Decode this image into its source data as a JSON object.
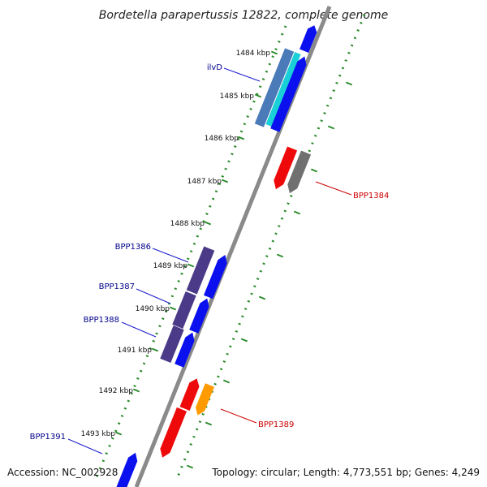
{
  "title": "Bordetella parapertussis 12822, complete genome",
  "footer": {
    "accession": "Accession: NC_002928",
    "topology": "Topology: circular; Length: 4,773,551 bp; Genes: 4,249"
  },
  "colors": {
    "background": "#ffffff",
    "backbone": "#8a8a8a",
    "dotted_track": "#2a8a2a",
    "blue_gene": "#0a10ee",
    "red_gene": "#ee0a0a",
    "cyan_gene": "#1ad0d8",
    "steelblue_gene": "#4a7ab8",
    "purple_gene": "#4a3a88",
    "gray_gene": "#707070",
    "orange_gene": "#ff9a00",
    "label_blue": "#00008b",
    "label_red": "#cc0000"
  },
  "scale_labels": [
    "1484 kbp",
    "1485 kbp",
    "1486 kbp",
    "1487 kbp",
    "1488 kbp",
    "1489 kbp",
    "1490 kbp",
    "1491 kbp",
    "1492 kbp",
    "1493 kbp"
  ],
  "gene_labels": [
    {
      "text": "ilvD",
      "color": "label_blue"
    },
    {
      "text": "BPP1384",
      "color": "label_red"
    },
    {
      "text": "BPP1386",
      "color": "label_blue"
    },
    {
      "text": "BPP1387",
      "color": "label_blue"
    },
    {
      "text": "BPP1388",
      "color": "label_blue"
    },
    {
      "text": "BPP1389",
      "color": "label_red"
    },
    {
      "text": "BPP1391",
      "color": "label_blue"
    }
  ]
}
